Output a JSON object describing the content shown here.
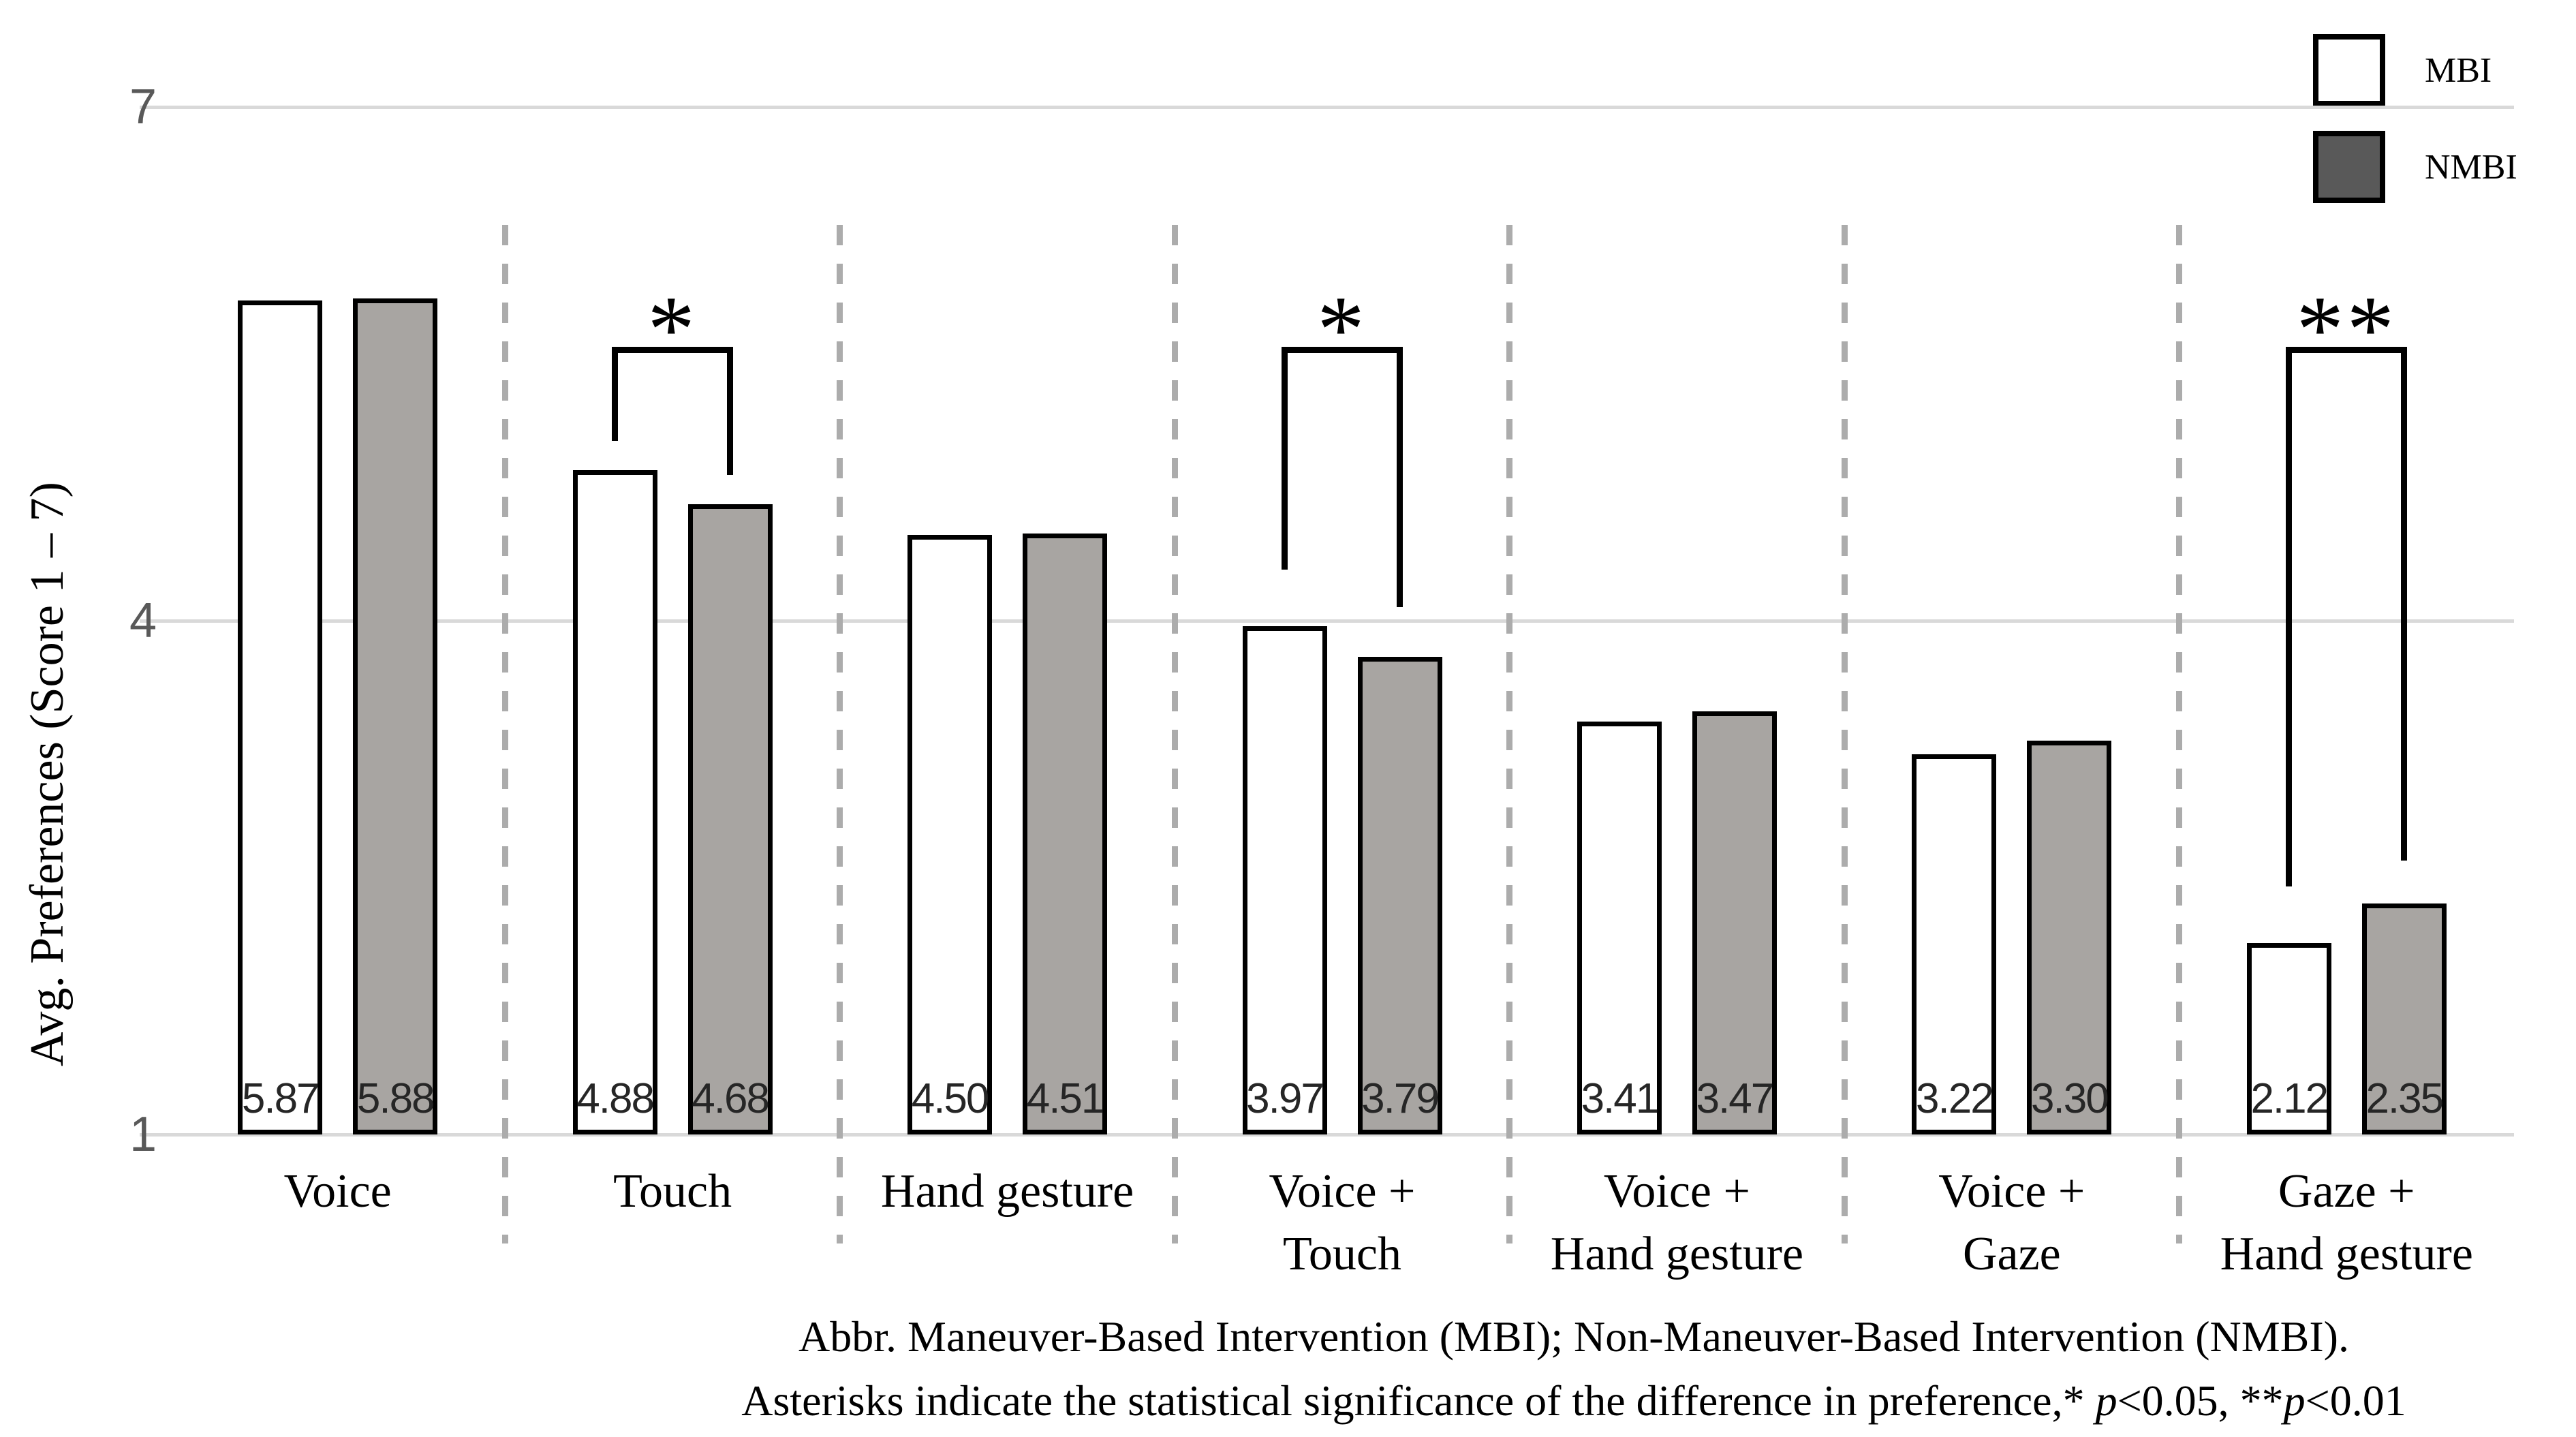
{
  "figure": {
    "legend": [
      {
        "label": "MBI",
        "fill": "#FFFFFF"
      },
      {
        "label": "NMBI",
        "fill": "#595959"
      }
    ],
    "caption_line1": "Abbr. Maneuver-Based Intervention (MBI); Non-Maneuver-Based Intervention (NMBI).",
    "caption_line2_segments": [
      {
        "text": "Asterisks indicate the statistical significance of the difference in preference,* ",
        "italic": false
      },
      {
        "text": "p",
        "italic": true
      },
      {
        "text": "<0.05, **",
        "italic": false
      },
      {
        "text": "p",
        "italic": true
      },
      {
        "text": "<0.01",
        "italic": false
      }
    ]
  },
  "colors": {
    "mbi_bar_fill": "#FFFFFF",
    "nmbi_bar_fill": "#A8A5A2",
    "bar_border": "#000000",
    "gridline": "#D9D9D9",
    "separator_dash": "#ACACAC",
    "tick_label": "#595959"
  },
  "chart_data": {
    "type": "bar",
    "title": "",
    "ylabel": "Avg. Preferences (Score 1 – 7)",
    "ylim": [
      1,
      7
    ],
    "yticks": [
      7,
      4,
      1
    ],
    "grid": "horizontal",
    "legend_position": "top-right",
    "categories": [
      "Voice",
      "Touch",
      "Hand gesture",
      "Voice + Touch",
      "Voice + Hand gesture",
      "Voice + Gaze",
      "Gaze + Hand gesture"
    ],
    "category_label_lines": [
      [
        "Voice"
      ],
      [
        "Touch"
      ],
      [
        "Hand gesture"
      ],
      [
        "Voice +",
        "Touch"
      ],
      [
        "Voice +",
        "Hand gesture"
      ],
      [
        "Voice +",
        "Gaze"
      ],
      [
        "Gaze +",
        "Hand gesture"
      ]
    ],
    "series": [
      {
        "name": "MBI",
        "values": [
          5.87,
          4.88,
          4.5,
          3.97,
          3.41,
          3.22,
          2.12
        ]
      },
      {
        "name": "NMBI",
        "values": [
          5.88,
          4.68,
          4.51,
          3.79,
          3.47,
          3.3,
          2.35
        ]
      }
    ],
    "value_labels_shown": true,
    "significance": [
      {
        "group_index": 1,
        "marker": "*",
        "bracket_top_score": 5.6,
        "left_leg_end_score": 5.05,
        "right_leg_end_score": 4.85
      },
      {
        "group_index": 3,
        "marker": "*",
        "bracket_top_score": 5.6,
        "left_leg_end_score": 4.3,
        "right_leg_end_score": 4.08
      },
      {
        "group_index": 6,
        "marker": "**",
        "bracket_top_score": 5.6,
        "left_leg_end_score": 2.45,
        "right_leg_end_score": 2.6
      }
    ]
  }
}
